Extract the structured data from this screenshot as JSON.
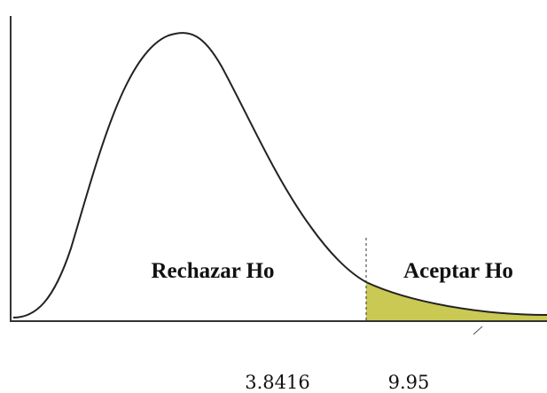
{
  "regions": {
    "reject": "Rechazar Ho",
    "accept": "Aceptar Ho"
  },
  "axis_labels": [
    "3.8416",
    "9.95"
  ]
}
